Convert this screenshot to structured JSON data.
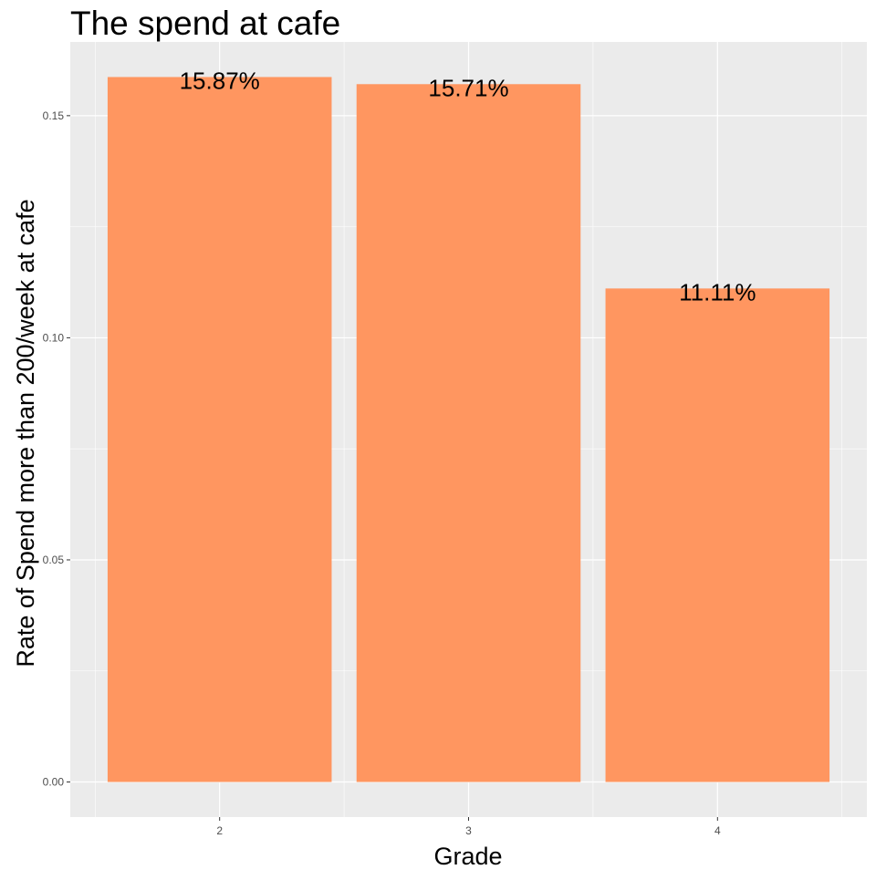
{
  "chart_data": {
    "type": "bar",
    "title": "The spend at cafe",
    "xlabel": "Grade",
    "ylabel": "Rate of Spend more than 200/week at cafe",
    "categories": [
      "2",
      "3",
      "4"
    ],
    "values": [
      0.1587,
      0.1571,
      0.1111
    ],
    "data_labels": [
      "15.87%",
      "15.71%",
      "11.11%"
    ],
    "yticks": [
      0.0,
      0.05,
      0.1,
      0.15
    ],
    "ytick_labels": [
      "0.00",
      "0.05",
      "0.10",
      "0.15"
    ],
    "ylim": [
      -0.0079,
      0.1666
    ],
    "grid": true,
    "legend": "none",
    "colors": {
      "bar": "#ff9660",
      "panel": "#ebebeb",
      "grid": "#ffffff",
      "tick": "#333333"
    }
  }
}
